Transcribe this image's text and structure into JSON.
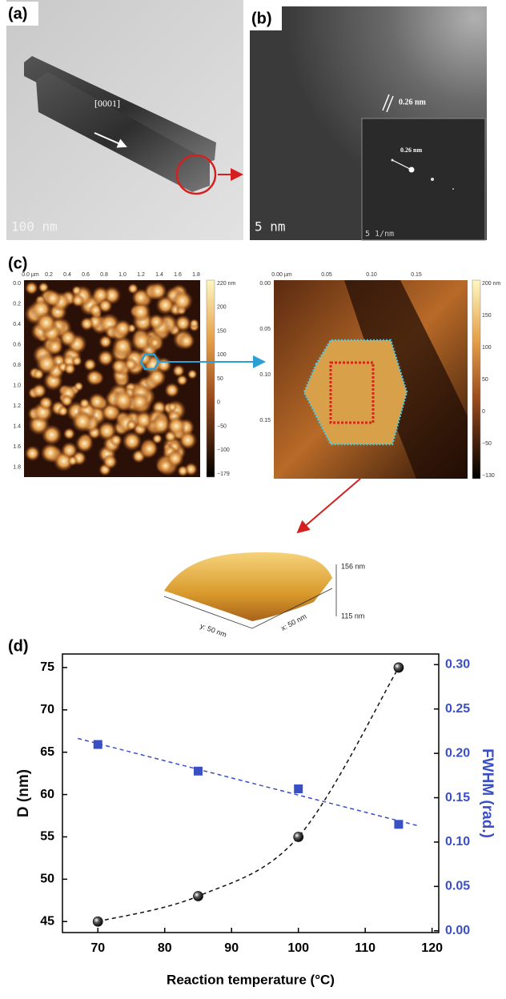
{
  "panel_labels": [
    "(a)",
    "(b)",
    "(c)",
    "(d)"
  ],
  "panel_a": {
    "direction": "[0001]",
    "scale_bar": "100 nm"
  },
  "panel_b": {
    "lattice_spacing": "0.26 nm",
    "inset_spacing": "0.26 nm",
    "scale_bar": "5 nm",
    "inset_scale_bar": "5 1/nm"
  },
  "panel_c": {
    "left_map": {
      "x_ticks": [
        "0.0 µm",
        "0.2",
        "0.4",
        "0.6",
        "0.8",
        "1.0",
        "1.2",
        "1.4",
        "1.6",
        "1.8"
      ],
      "y_ticks": [
        "0.0",
        "0.2",
        "0.4",
        "0.6",
        "0.8",
        "1.0",
        "1.2",
        "1.4",
        "1.6",
        "1.8"
      ],
      "colorbar_ticks": [
        "220 nm",
        "200",
        "150",
        "100",
        "50",
        "0",
        "−50",
        "−100",
        "−179"
      ]
    },
    "right_map": {
      "x_ticks": [
        "0.00 µm",
        "0.05",
        "0.10",
        "0.15"
      ],
      "y_ticks": [
        "0.00",
        "0.05",
        "0.10",
        "0.15"
      ],
      "colorbar_ticks": [
        "200 nm",
        "150",
        "100",
        "50",
        "0",
        "−50",
        "−130"
      ]
    },
    "surface": {
      "z_max": "156 nm",
      "z_min": "115 nm",
      "y_size": "y: 50 nm",
      "x_size": "x: 50 nm"
    }
  },
  "chart_data": {
    "type": "scatter",
    "x_label": "Reaction temperature (°C)",
    "x": [
      70,
      85,
      100,
      115
    ],
    "series": [
      {
        "name": "D (nm)",
        "color": "#111111",
        "values": [
          45,
          48,
          55,
          75
        ]
      },
      {
        "name": "FWHM (rad.)",
        "color": "#3b4fc4",
        "values": [
          0.21,
          0.18,
          0.16,
          0.12
        ],
        "axis": "y2"
      }
    ],
    "xlim": [
      64.7,
      121
    ],
    "xticks": [
      70,
      80,
      90,
      100,
      110,
      120
    ],
    "ylim": [
      43.7,
      76.6
    ],
    "yticks": [
      45,
      50,
      55,
      60,
      65,
      70,
      75
    ],
    "y2lim": [
      -0.002,
      0.312
    ],
    "y2ticks": [
      {
        "value": 0,
        "label": "0.00"
      },
      0.05,
      {
        "value": 0.1,
        "label": "0.10"
      },
      0.15,
      {
        "value": 0.2,
        "label": "0.20"
      },
      0.25,
      {
        "value": 0.3,
        "label": "0.30"
      }
    ],
    "fit_lines": true
  }
}
